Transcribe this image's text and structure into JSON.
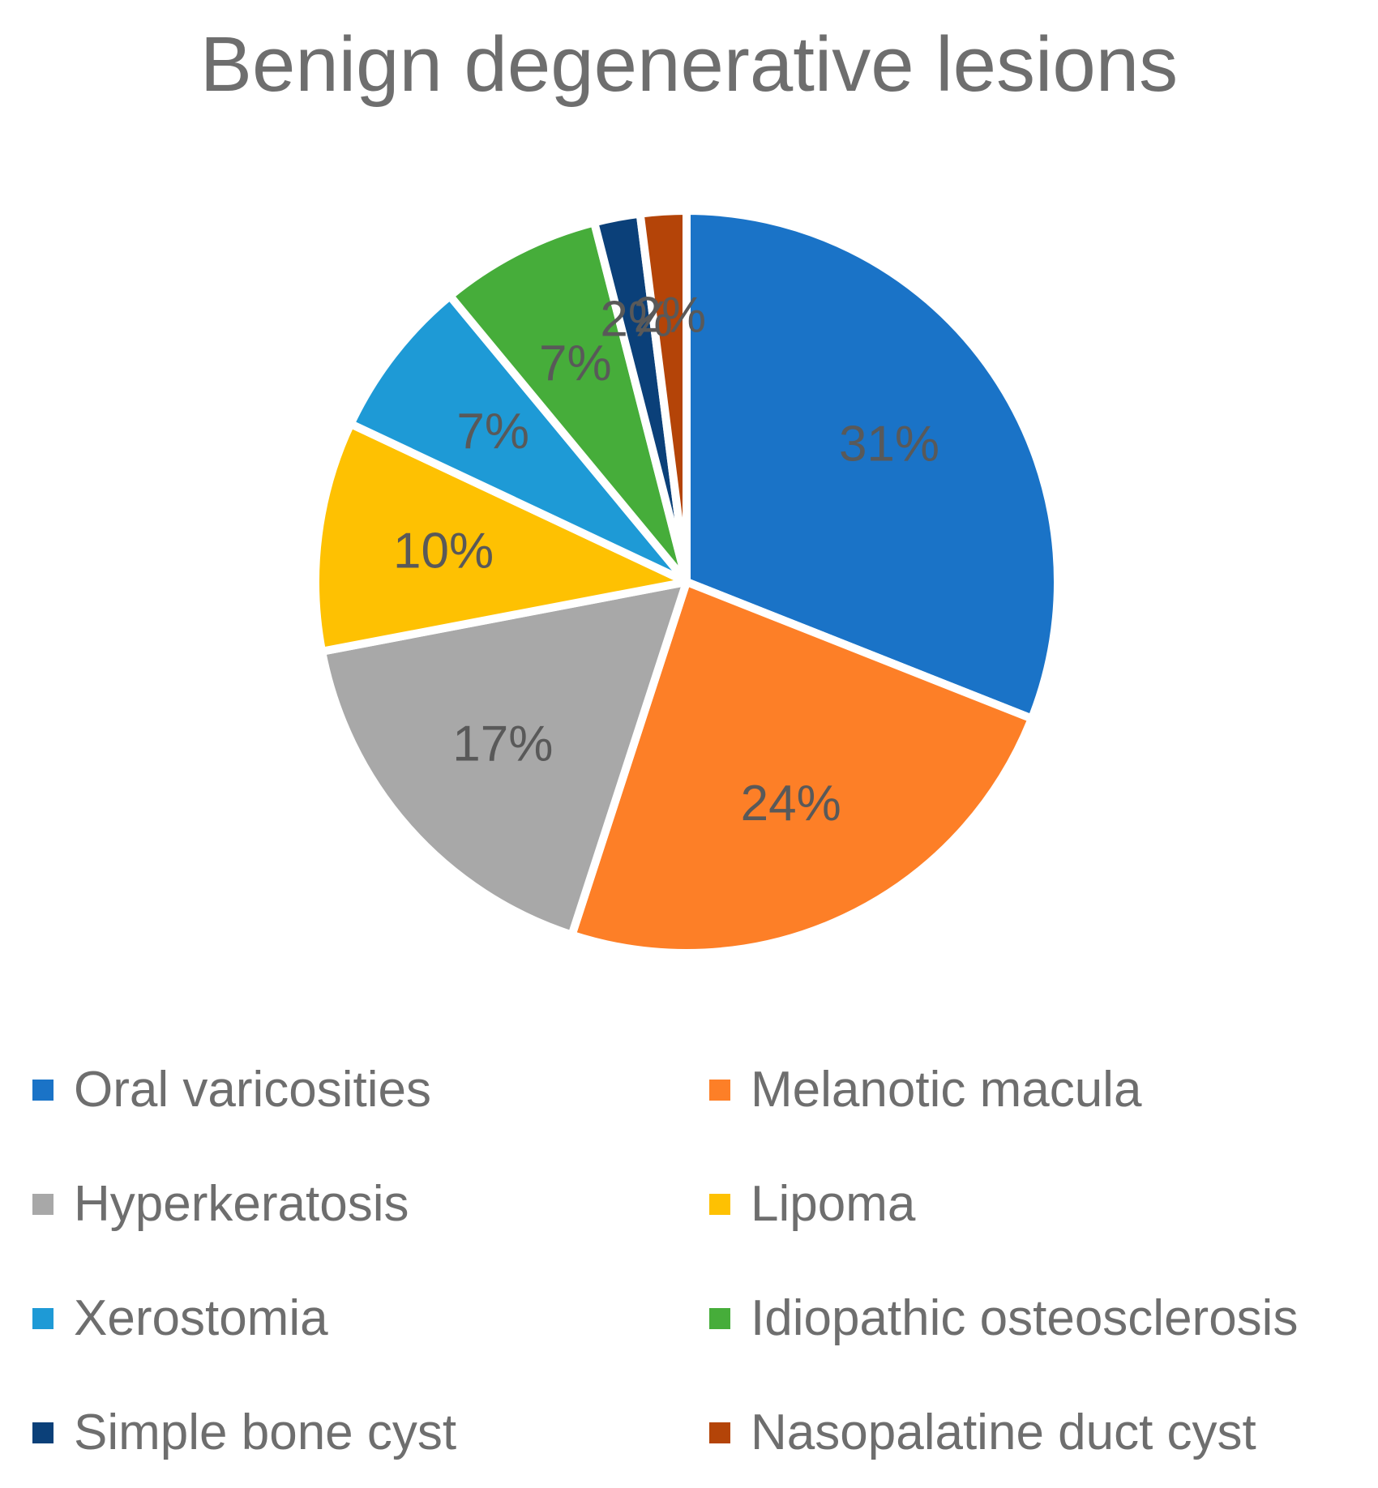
{
  "chart_data": {
    "type": "pie",
    "title": "Benign degenerative lesions",
    "legend_position": "bottom",
    "slices": [
      {
        "name": "Oral varicosities",
        "value": 31,
        "label": "31%",
        "color": "#1a73c7"
      },
      {
        "name": "Melanotic macula",
        "value": 24,
        "label": "24%",
        "color": "#fd7f27"
      },
      {
        "name": "Hyperkeratosis",
        "value": 17,
        "label": "17%",
        "color": "#a8a8a8"
      },
      {
        "name": "Lipoma",
        "value": 10,
        "label": "10%",
        "color": "#fec102"
      },
      {
        "name": "Xerostomia",
        "value": 7,
        "label": "7%",
        "color": "#1e9ad6"
      },
      {
        "name": "Idiopathic osteosclerosis",
        "value": 7,
        "label": "7%",
        "color": "#46ad3a"
      },
      {
        "name": "Simple bone cyst",
        "value": 2,
        "label": "2%",
        "color": "#0b4079"
      },
      {
        "name": "Nasopalatine duct cyst",
        "value": 2,
        "label": "2%",
        "color": "#b44408"
      }
    ]
  }
}
